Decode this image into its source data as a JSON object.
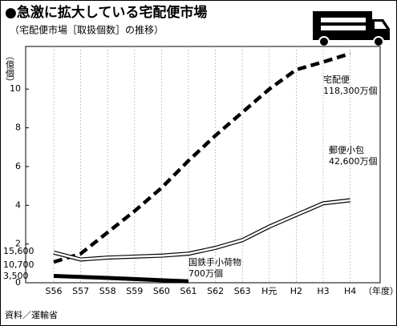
{
  "chart_data": {
    "type": "line",
    "title": "●急激に拡大している宅配便市場",
    "subtitle": "（宅配便市場［取扱個数］の推移）",
    "y_label": "（億個）",
    "x_label": "（年度）",
    "source": "資料／運輸省",
    "categories": [
      "S56",
      "S57",
      "S58",
      "S59",
      "S60",
      "S61",
      "S62",
      "S63",
      "H元",
      "H2",
      "H3",
      "H4"
    ],
    "ylim": [
      0,
      12.2
    ],
    "yticks": [
      0,
      2,
      4,
      6,
      8,
      10
    ],
    "grid": true,
    "series": [
      {
        "name": "宅配便",
        "color": "#000000",
        "dashed": true,
        "values": [
          1.07,
          1.5,
          2.6,
          3.7,
          4.9,
          6.3,
          7.6,
          8.8,
          10.0,
          11.0,
          11.4,
          11.83
        ],
        "value_labels": [
          "10,700",
          null,
          null,
          null,
          null,
          null,
          null,
          null,
          null,
          null,
          null,
          "118,300万個"
        ]
      },
      {
        "name": "郵便小包",
        "color": "#ffffff",
        "dashed": false,
        "values": [
          1.56,
          1.2,
          1.3,
          1.35,
          1.4,
          1.5,
          1.8,
          2.2,
          2.9,
          3.5,
          4.1,
          4.26
        ],
        "value_labels": [
          "15,600",
          null,
          null,
          null,
          null,
          null,
          null,
          null,
          null,
          null,
          null,
          "42,600万個"
        ]
      },
      {
        "name": "国鉄手小荷物",
        "color": "#000000",
        "dashed": false,
        "values": [
          0.35,
          0.3,
          0.25,
          0.19,
          0.13,
          0.07,
          null,
          null,
          null,
          null,
          null,
          null
        ],
        "value_labels": [
          "3,500",
          null,
          null,
          null,
          null,
          "700万個",
          null,
          null,
          null,
          null,
          null,
          null
        ]
      }
    ]
  }
}
